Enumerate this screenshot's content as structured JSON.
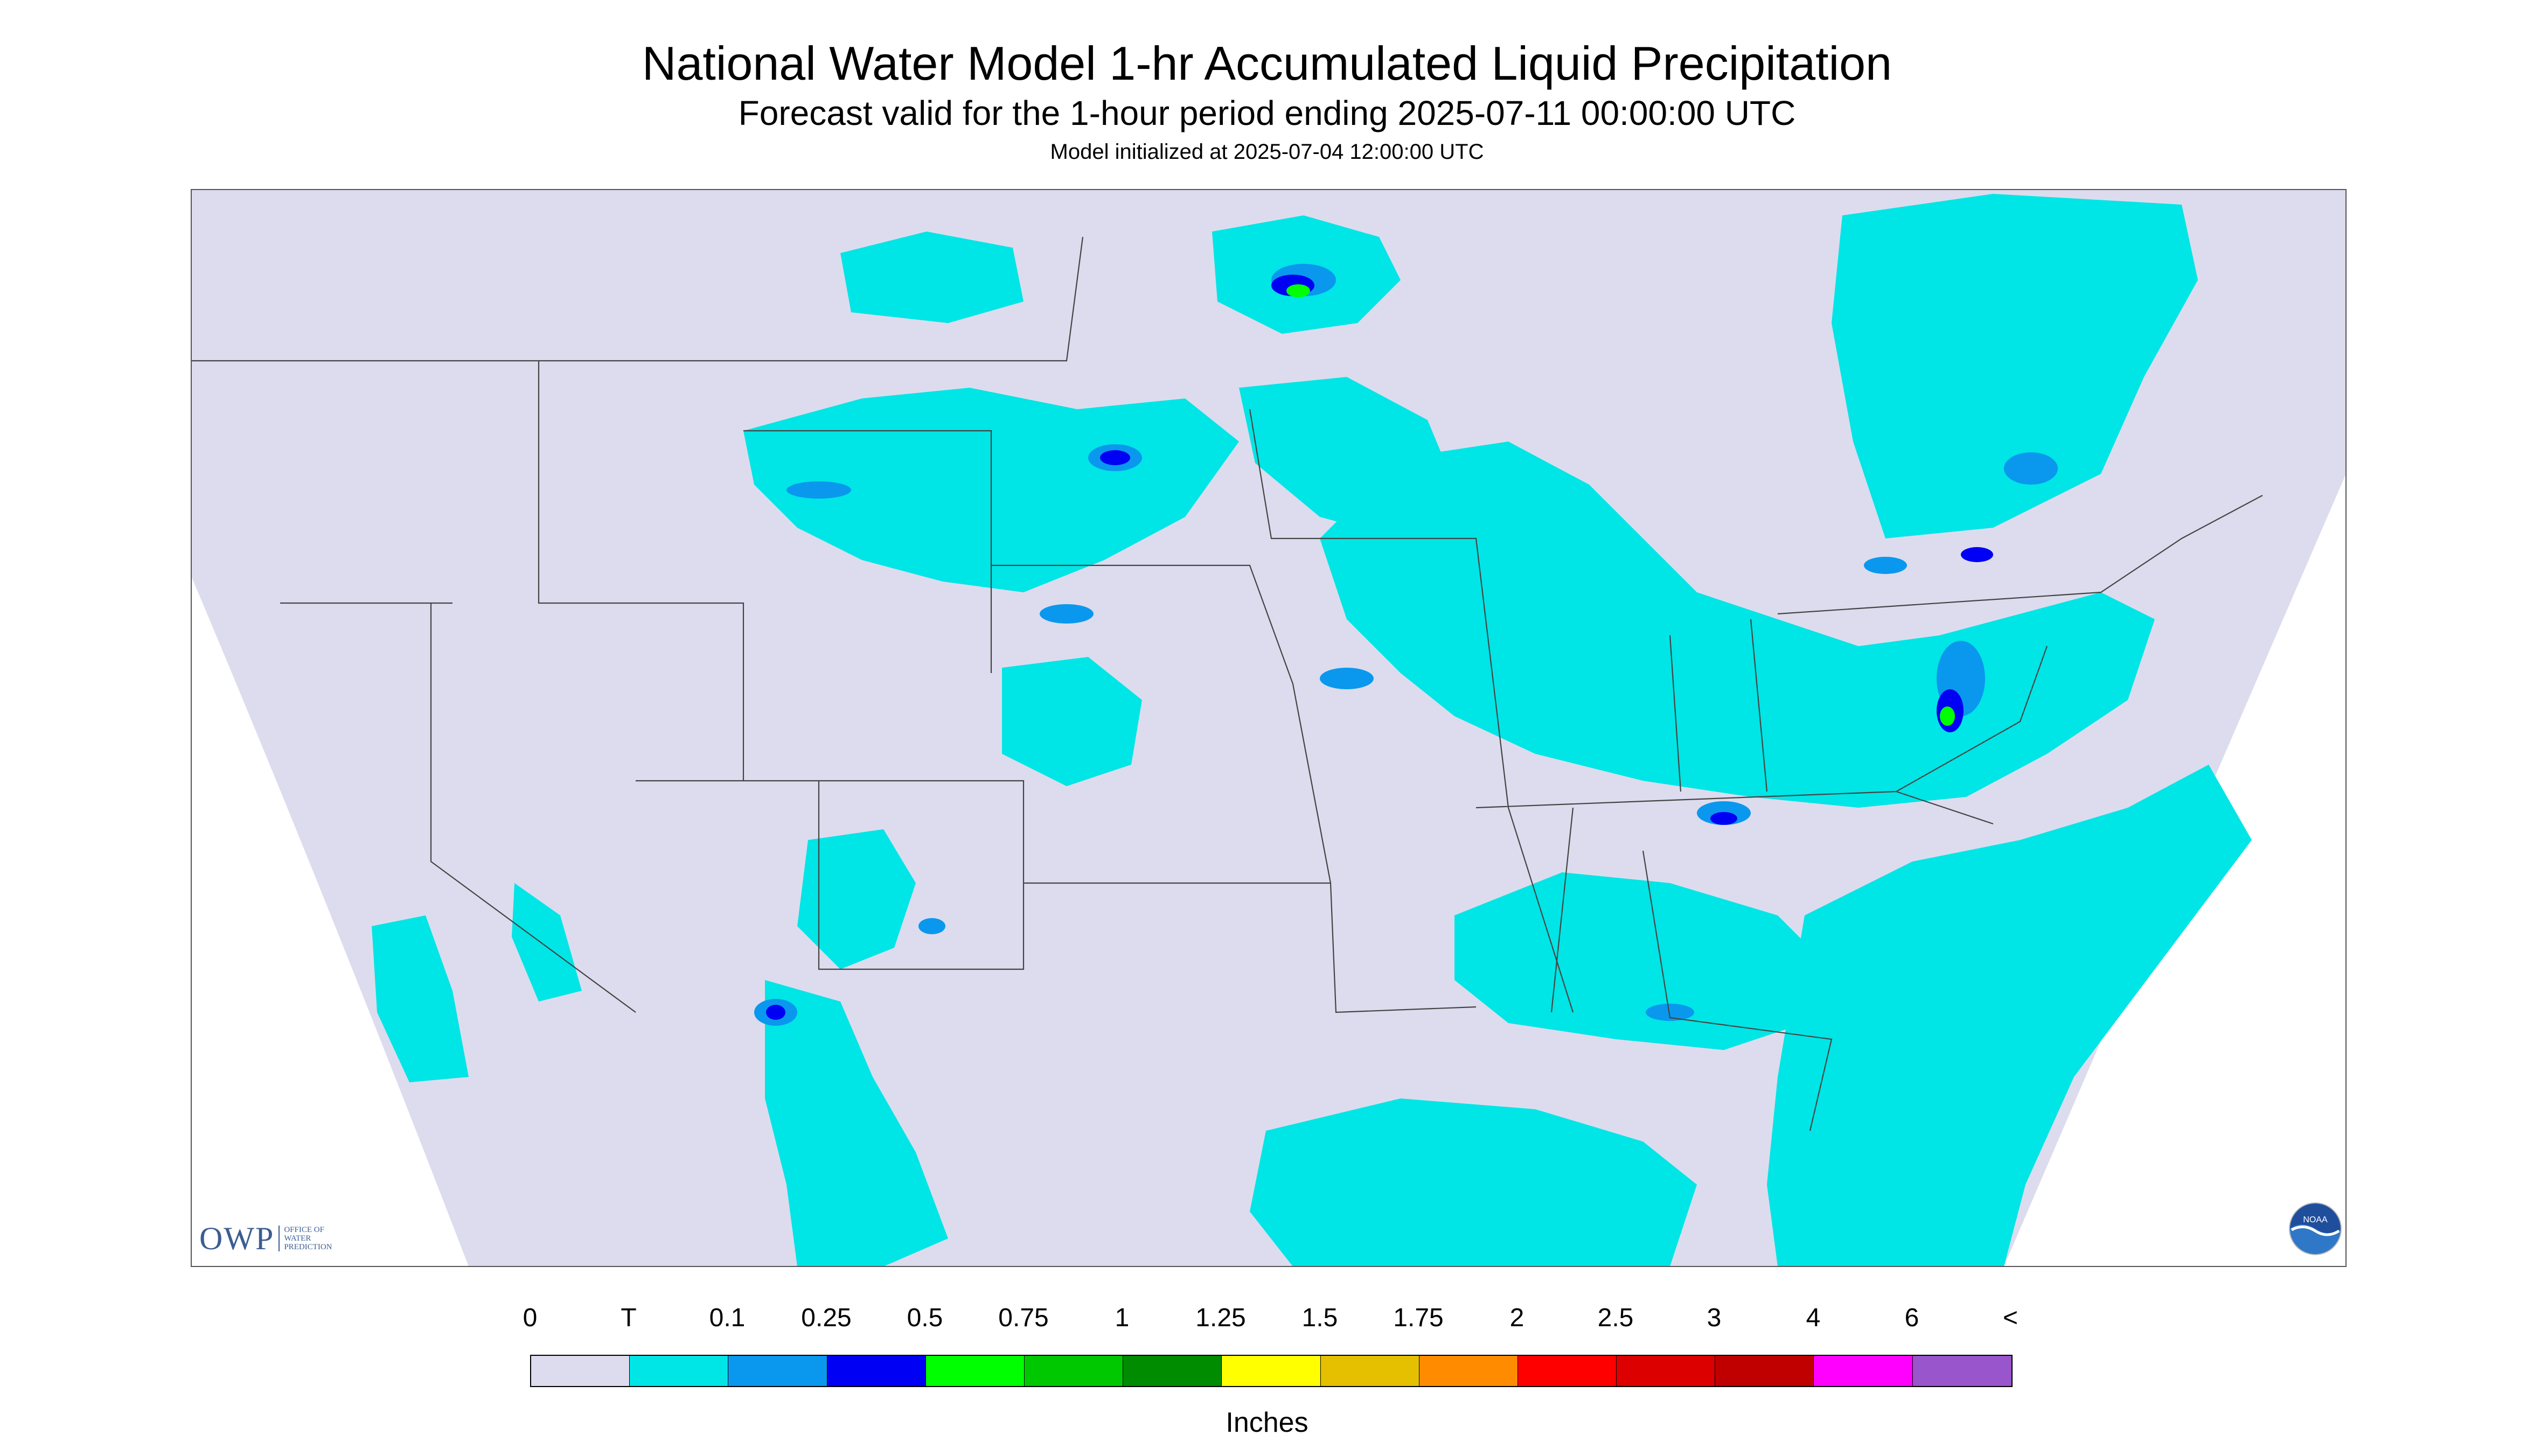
{
  "title": "National Water Model 1-hr Accumulated Liquid Precipitation",
  "subtitle": "Forecast valid for the 1-hour period ending 2025-07-11 00:00:00 UTC",
  "init_line": "Model initialized at 2025-07-04 12:00:00 UTC",
  "legend": {
    "labels": [
      "0",
      "T",
      "0.1",
      "0.25",
      "0.5",
      "0.75",
      "1",
      "1.25",
      "1.5",
      "1.75",
      "2",
      "2.5",
      "3",
      "4",
      "6",
      "<"
    ],
    "colors": [
      "#dcdcee",
      "#00e5e5",
      "#0a98ee",
      "#0000f5",
      "#00ff00",
      "#00c800",
      "#008c00",
      "#ffff00",
      "#e5c000",
      "#ff8c00",
      "#ff0000",
      "#dd0000",
      "#c00000",
      "#ff00ff",
      "#9955cc"
    ],
    "units": "Inches"
  },
  "logos": {
    "owp_mark": "OWP",
    "owp_sub": "OFFICE OF\nWATER\nPREDICTION",
    "noaa": "NOAA"
  },
  "map": {
    "domain_color": "#dcdcee",
    "trace_color": "#00e5e5",
    "light_color": "#0a98ee",
    "heavy_color": "#0000f5",
    "green_color": "#00ff00",
    "boundary_color": "#444444"
  }
}
